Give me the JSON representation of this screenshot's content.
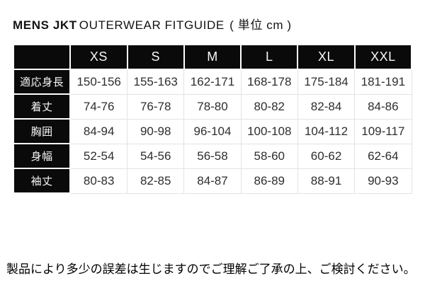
{
  "header": {
    "brand": "MENS JKT",
    "title_rest": "OUTERWEAR FITGUIDE",
    "unit_note": "( 単位 cm )"
  },
  "chart_data": {
    "type": "table",
    "title": "MENS JKT OUTERWEAR FITGUIDE ( 単位 cm )",
    "unit": "cm",
    "columns": [
      "XS",
      "S",
      "M",
      "L",
      "XL",
      "XXL"
    ],
    "rows": [
      {
        "label": "適応身長",
        "values": [
          "150-156",
          "155-163",
          "162-171",
          "168-178",
          "175-184",
          "181-191"
        ]
      },
      {
        "label": "着丈",
        "values": [
          "74-76",
          "76-78",
          "78-80",
          "80-82",
          "82-84",
          "84-86"
        ]
      },
      {
        "label": "胸囲",
        "values": [
          "84-94",
          "90-98",
          "96-104",
          "100-108",
          "104-112",
          "109-117"
        ]
      },
      {
        "label": "身幅",
        "values": [
          "52-54",
          "54-56",
          "56-58",
          "58-60",
          "60-62",
          "62-64"
        ]
      },
      {
        "label": "袖丈",
        "values": [
          "80-83",
          "82-85",
          "84-87",
          "86-89",
          "88-91",
          "90-93"
        ]
      }
    ]
  },
  "footer": {
    "note": "製品により多少の誤差は生じますのでご理解ご了承の上、ご検討ください。"
  },
  "colors": {
    "header_cell_bg": "#0a0a0a",
    "header_cell_text": "#f7f7f7",
    "data_text": "#2e2e2e",
    "grid_line": "#e3e3e3",
    "page_bg": "#ffffff"
  }
}
